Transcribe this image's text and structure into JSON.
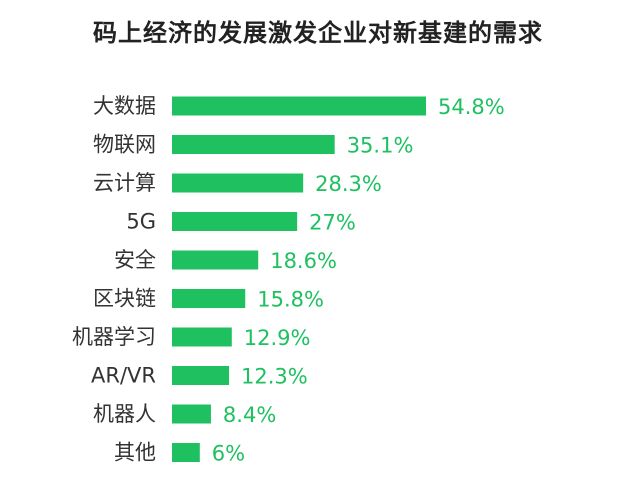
{
  "chart_data": {
    "type": "bar",
    "orientation": "horizontal",
    "title": "码上经济的发展激发企业对新基建的需求",
    "categories": [
      "大数据",
      "物联网",
      "云计算",
      "5G",
      "安全",
      "区块链",
      "机器学习",
      "AR/VR",
      "机器人",
      "其他"
    ],
    "values": [
      54.8,
      35.1,
      28.3,
      27,
      18.6,
      15.8,
      12.9,
      12.3,
      8.4,
      6
    ],
    "value_labels": [
      "54.8%",
      "35.1%",
      "28.3%",
      "27%",
      "18.6%",
      "15.8%",
      "12.9%",
      "12.3%",
      "8.4%",
      "6%"
    ],
    "unit": "%",
    "bar_color": "#1ec060",
    "label_color": "#1ec060",
    "grid": false,
    "legend": "none"
  }
}
